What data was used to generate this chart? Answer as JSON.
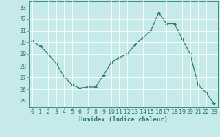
{
  "x": [
    0,
    1,
    2,
    3,
    4,
    5,
    6,
    7,
    8,
    9,
    10,
    11,
    12,
    13,
    14,
    15,
    16,
    17,
    18,
    19,
    20,
    21,
    22,
    23
  ],
  "y": [
    30.1,
    29.7,
    29.0,
    28.2,
    27.1,
    26.4,
    26.1,
    26.2,
    26.2,
    27.2,
    28.3,
    28.7,
    29.0,
    29.8,
    30.4,
    31.0,
    32.5,
    31.6,
    31.6,
    30.3,
    29.0,
    26.4,
    25.7,
    24.8
  ],
  "line_color": "#2d7a6e",
  "marker": "D",
  "marker_size": 2.0,
  "bg_color": "#c6eaea",
  "grid_color": "#ffffff",
  "axis_color": "#2d7a6e",
  "tick_color": "#2d7a6e",
  "xlabel": "Humidex (Indice chaleur)",
  "ylim": [
    24.5,
    33.5
  ],
  "yticks": [
    25,
    26,
    27,
    28,
    29,
    30,
    31,
    32,
    33
  ],
  "xticks": [
    0,
    1,
    2,
    3,
    4,
    5,
    6,
    7,
    8,
    9,
    10,
    11,
    12,
    13,
    14,
    15,
    16,
    17,
    18,
    19,
    20,
    21,
    22,
    23
  ],
  "label_fontsize": 6.5,
  "tick_fontsize": 6.0
}
